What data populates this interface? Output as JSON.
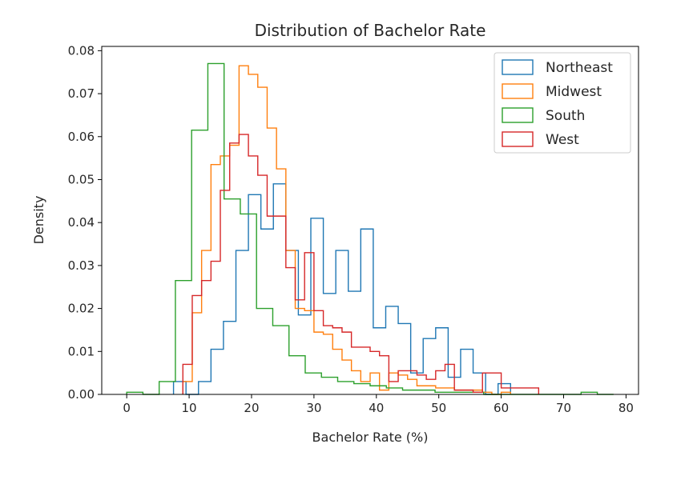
{
  "chart_data": {
    "type": "histogram-step",
    "title": "Distribution of Bachelor Rate",
    "xlabel": "Bachelor Rate (%)",
    "ylabel": "Density",
    "xlim": [
      -4,
      82
    ],
    "ylim": [
      0,
      0.081
    ],
    "xticks": [
      0,
      10,
      20,
      30,
      40,
      50,
      60,
      70,
      80
    ],
    "xtick_labels": [
      "0",
      "10",
      "20",
      "30",
      "40",
      "50",
      "60",
      "70",
      "80"
    ],
    "yticks": [
      0,
      0.01,
      0.02,
      0.03,
      0.04,
      0.05,
      0.06,
      0.07,
      0.08
    ],
    "ytick_labels": [
      "0.00",
      "0.01",
      "0.02",
      "0.03",
      "0.04",
      "0.05",
      "0.06",
      "0.07",
      "0.08"
    ],
    "legend_position": "top-right",
    "series": [
      {
        "name": "Northeast",
        "color": "#1f77b4",
        "edges": [
          7.5,
          9.5,
          11.5,
          13.5,
          15.5,
          17.5,
          19.5,
          21.5,
          23.5,
          25.5,
          27.5,
          29.5,
          31.5,
          33.5,
          35.5,
          37.5,
          39.5,
          41.5,
          43.5,
          45.5,
          47.5,
          49.5,
          51.5,
          53.5,
          55.5,
          57.5,
          59.5,
          61.5
        ],
        "values": [
          0.003,
          0.0,
          0.003,
          0.0105,
          0.017,
          0.0335,
          0.0465,
          0.0385,
          0.049,
          0.0335,
          0.0185,
          0.041,
          0.0235,
          0.0335,
          0.024,
          0.0385,
          0.0155,
          0.0205,
          0.0165,
          0.005,
          0.013,
          0.0155,
          0.004,
          0.0105,
          0.005,
          0.0,
          0.0025
        ]
      },
      {
        "name": "Midwest",
        "color": "#ff7f0e",
        "edges": [
          9.0,
          10.5,
          12.0,
          13.5,
          15.0,
          16.5,
          18.0,
          19.5,
          21.0,
          22.5,
          24.0,
          25.5,
          27.0,
          28.5,
          30.0,
          31.5,
          33.0,
          34.5,
          36.0,
          37.5,
          39.0,
          40.5,
          42.0,
          43.5,
          45.0,
          46.5,
          48.0,
          49.5,
          51.0,
          52.5,
          54.0,
          55.5,
          57.0,
          58.5,
          60.0,
          61.5
        ],
        "values": [
          0.003,
          0.019,
          0.0335,
          0.0535,
          0.0555,
          0.058,
          0.0765,
          0.0745,
          0.0715,
          0.062,
          0.0525,
          0.0335,
          0.02,
          0.0195,
          0.0145,
          0.014,
          0.0105,
          0.008,
          0.0055,
          0.003,
          0.005,
          0.001,
          0.005,
          0.0045,
          0.0035,
          0.002,
          0.002,
          0.0015,
          0.0015,
          0.001,
          0.001,
          0.001,
          0.0005,
          0.0,
          0.0005
        ]
      },
      {
        "name": "South",
        "color": "#2ca02c",
        "edges": [
          0.0,
          2.6,
          5.2,
          7.8,
          10.4,
          13.0,
          15.6,
          18.2,
          20.8,
          23.4,
          26.0,
          28.6,
          31.2,
          33.8,
          36.4,
          39.0,
          41.6,
          44.2,
          46.8,
          49.4,
          52.0,
          54.6,
          57.2,
          59.8,
          62.4,
          65.0,
          67.6,
          70.2,
          72.8,
          75.4,
          78.0
        ],
        "values": [
          0.0005,
          0.0,
          0.003,
          0.0265,
          0.0615,
          0.077,
          0.0455,
          0.042,
          0.02,
          0.016,
          0.009,
          0.005,
          0.004,
          0.003,
          0.0025,
          0.002,
          0.0015,
          0.001,
          0.001,
          0.0005,
          0.0005,
          0.0005,
          0.0,
          0.0,
          0.0,
          0.0,
          0.0,
          0.0,
          0.0005,
          0.0
        ]
      },
      {
        "name": "West",
        "color": "#d62728",
        "edges": [
          9.0,
          10.5,
          12.0,
          13.5,
          15.0,
          16.5,
          18.0,
          19.5,
          21.0,
          22.5,
          24.0,
          25.5,
          27.0,
          28.5,
          30.0,
          31.5,
          33.0,
          34.5,
          36.0,
          37.5,
          39.0,
          40.5,
          42.0,
          43.5,
          45.0,
          46.5,
          48.0,
          49.5,
          51.0,
          52.5,
          54.0,
          55.5,
          57.0,
          58.5,
          60.0,
          61.5,
          63.0,
          64.5,
          66.0
        ],
        "values": [
          0.007,
          0.023,
          0.0265,
          0.031,
          0.0475,
          0.0585,
          0.0605,
          0.0555,
          0.051,
          0.0415,
          0.0415,
          0.0295,
          0.022,
          0.033,
          0.0195,
          0.016,
          0.0155,
          0.0145,
          0.011,
          0.011,
          0.01,
          0.009,
          0.003,
          0.0055,
          0.0055,
          0.0045,
          0.0035,
          0.0055,
          0.007,
          0.001,
          0.001,
          0.0005,
          0.005,
          0.005,
          0.0015,
          0.0015,
          0.0015,
          0.0015
        ]
      }
    ]
  }
}
